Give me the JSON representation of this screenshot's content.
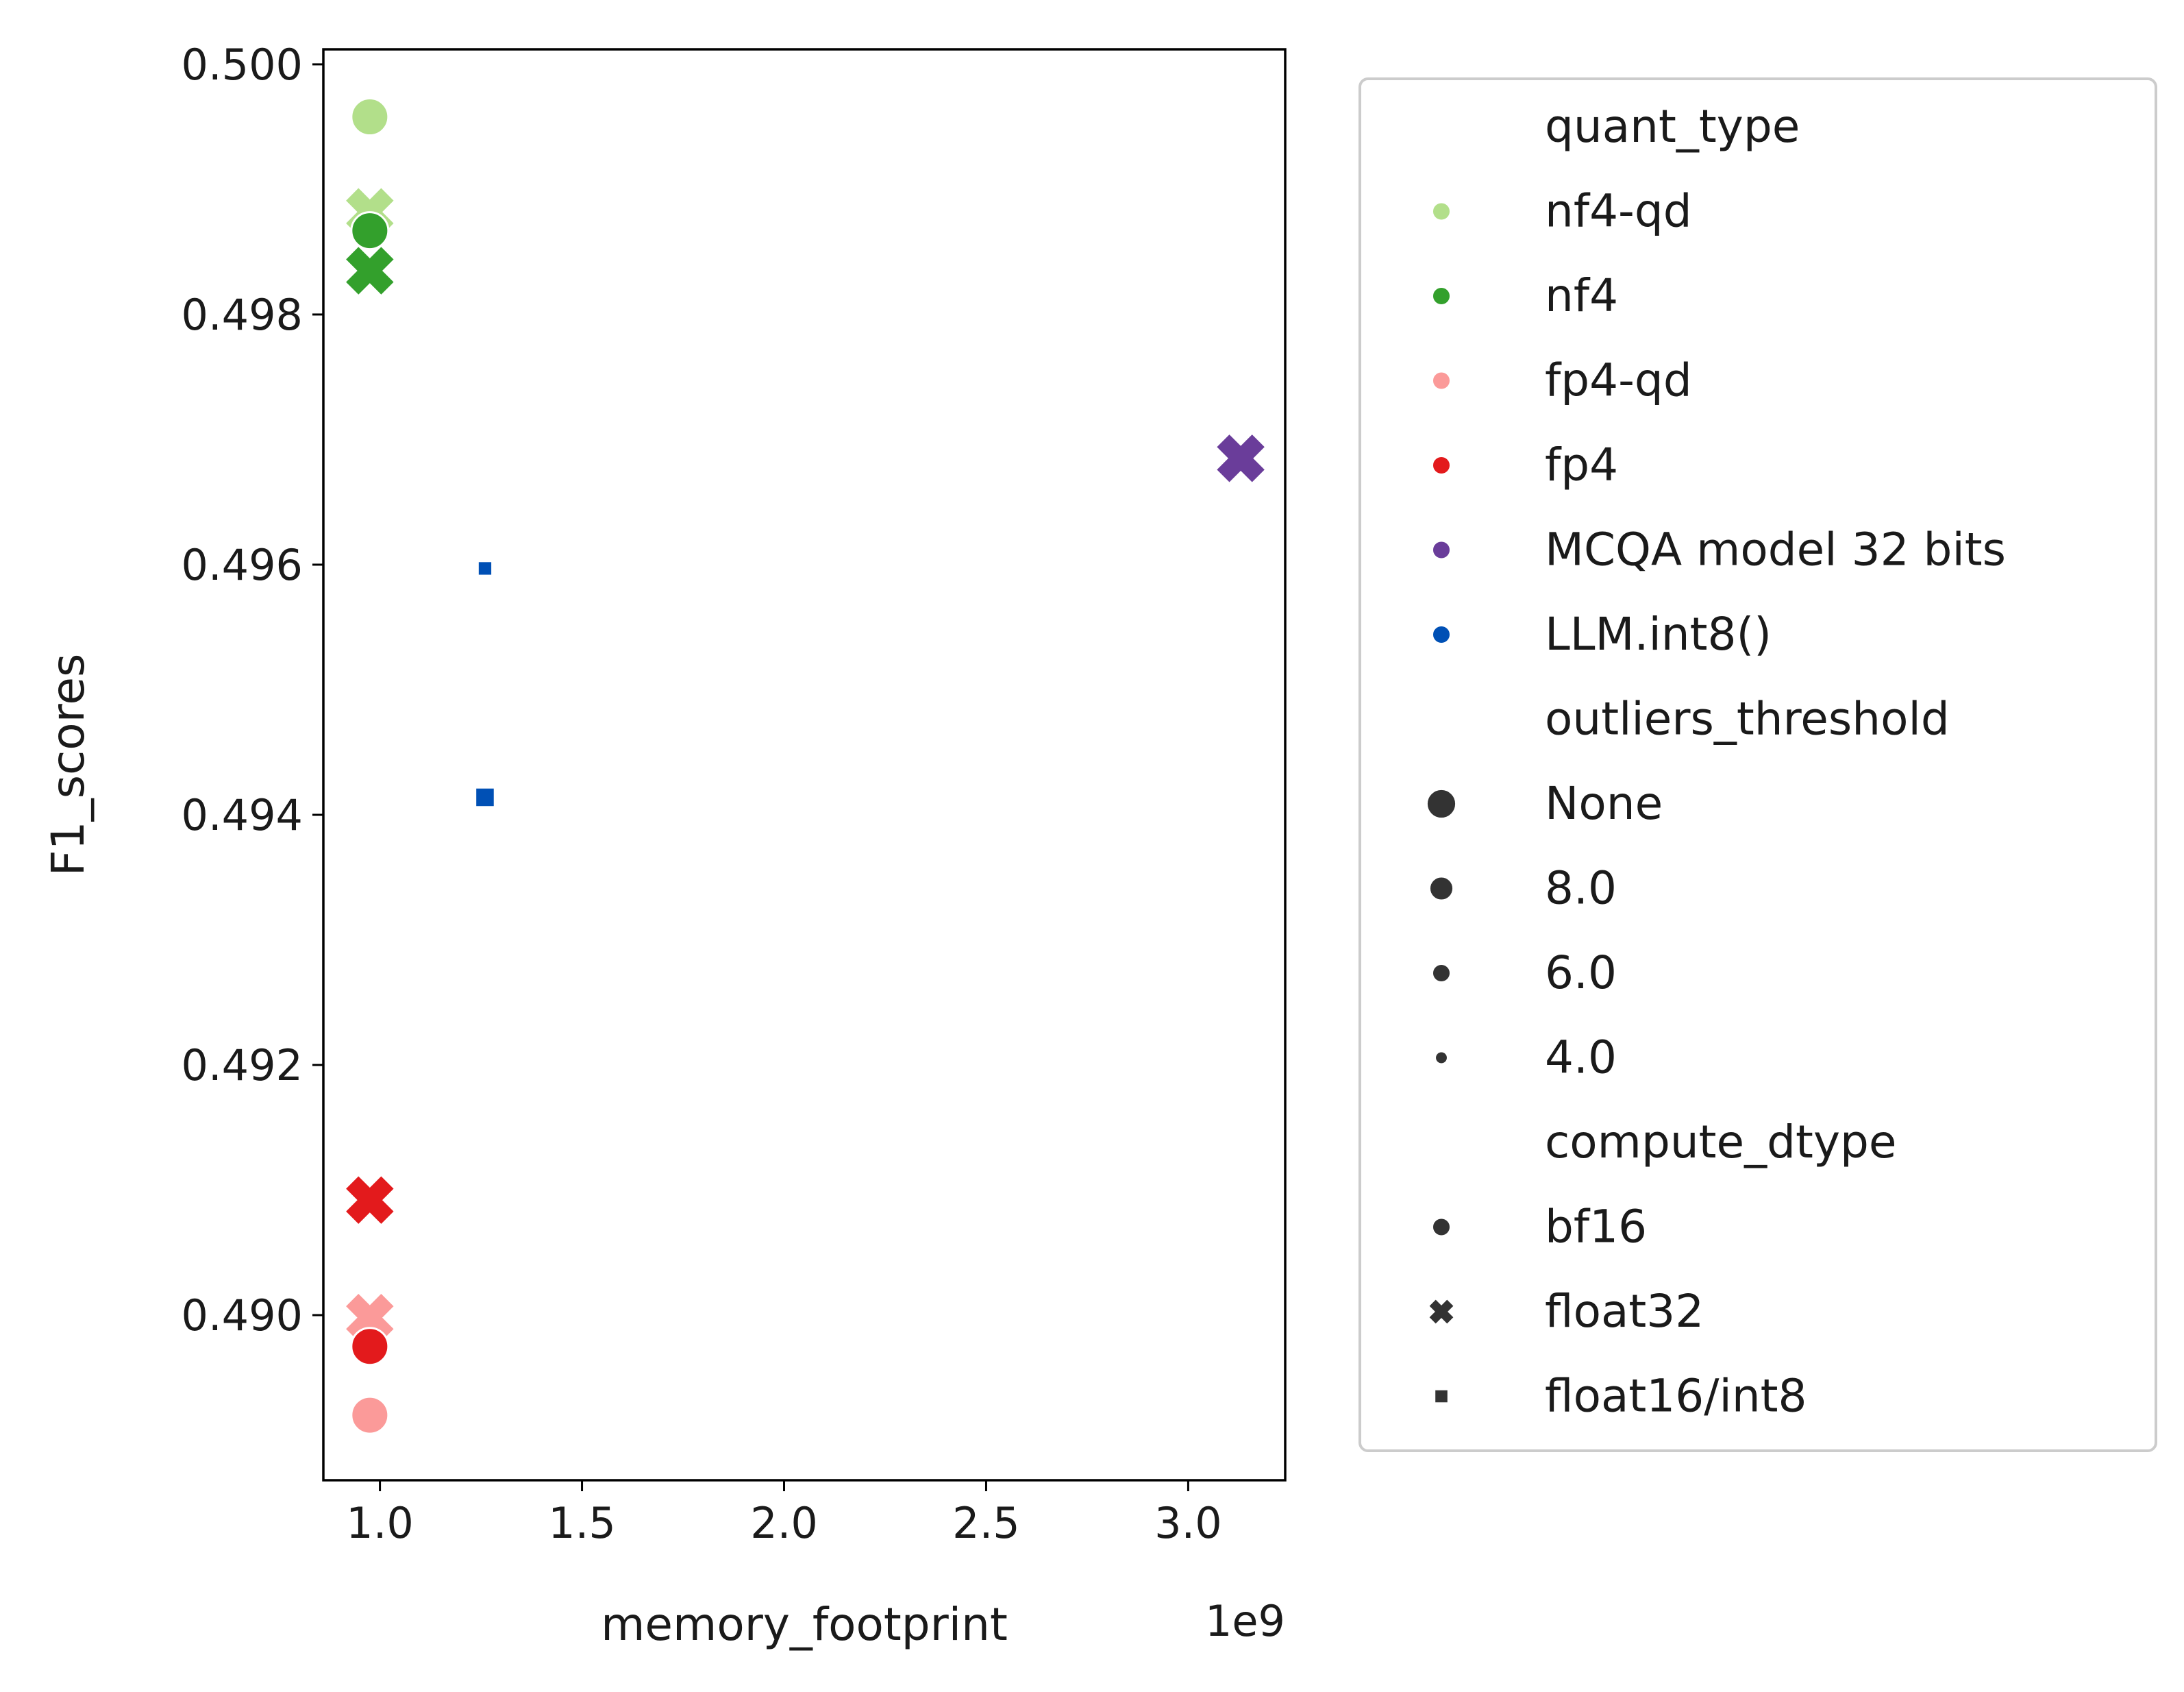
{
  "chart_data": {
    "type": "scatter",
    "title": "",
    "xlabel": "memory_footprint",
    "ylabel": "F1_scores",
    "x_offset_label": "1e9",
    "xlim": [
      0.86,
      3.24
    ],
    "ylim": [
      0.48868,
      0.50012
    ],
    "x_scale_factor": 1000000000,
    "xticks": [
      1.0,
      1.5,
      2.0,
      2.5,
      3.0
    ],
    "xtick_labels": [
      "1.0",
      "1.5",
      "2.0",
      "2.5",
      "3.0"
    ],
    "yticks": [
      0.49,
      0.492,
      0.494,
      0.496,
      0.498,
      0.5
    ],
    "ytick_labels": [
      "0.490",
      "0.492",
      "0.494",
      "0.496",
      "0.498",
      "0.500"
    ],
    "grid": false,
    "legend_position": "outside-right",
    "colors": {
      "nf4-qd": "#b2df8a",
      "nf4": "#33a02c",
      "fp4-qd": "#fb9a99",
      "fp4": "#e31a1c",
      "MCQA model 32 bits": "#6a3d9a",
      "LLM.int8()": "#0050b5",
      "neutral": "#333333"
    },
    "points": [
      {
        "quant_type": "nf4-qd",
        "outliers_threshold": "None",
        "compute_dtype": "float32",
        "x": 0.975,
        "y": 0.49882
      },
      {
        "quant_type": "nf4-qd",
        "outliers_threshold": "None",
        "compute_dtype": "bf16",
        "x": 0.975,
        "y": 0.49958
      },
      {
        "quant_type": "nf4",
        "outliers_threshold": "None",
        "compute_dtype": "float32",
        "x": 0.975,
        "y": 0.49835
      },
      {
        "quant_type": "nf4",
        "outliers_threshold": "None",
        "compute_dtype": "bf16",
        "x": 0.975,
        "y": 0.49867
      },
      {
        "quant_type": "fp4-qd",
        "outliers_threshold": "None",
        "compute_dtype": "float32",
        "x": 0.975,
        "y": 0.48998
      },
      {
        "quant_type": "fp4-qd",
        "outliers_threshold": "None",
        "compute_dtype": "bf16",
        "x": 0.975,
        "y": 0.4892
      },
      {
        "quant_type": "fp4",
        "outliers_threshold": "None",
        "compute_dtype": "float32",
        "x": 0.975,
        "y": 0.49092
      },
      {
        "quant_type": "fp4",
        "outliers_threshold": "None",
        "compute_dtype": "bf16",
        "x": 0.975,
        "y": 0.48975
      },
      {
        "quant_type": "MCQA model 32 bits",
        "outliers_threshold": "None",
        "compute_dtype": "float32",
        "x": 3.13,
        "y": 0.49685
      },
      {
        "quant_type": "LLM.int8()",
        "outliers_threshold": "4.0",
        "compute_dtype": "float16/int8",
        "x": 1.26,
        "y": 0.49597
      },
      {
        "quant_type": "LLM.int8()",
        "outliers_threshold": "6.0",
        "compute_dtype": "float16/int8",
        "x": 1.26,
        "y": 0.49414
      }
    ],
    "legend": {
      "groups": [
        {
          "title": "quant_type",
          "items": [
            {
              "label": "nf4-qd",
              "marker": "circle",
              "color": "#b2df8a",
              "size": 10
            },
            {
              "label": "nf4",
              "marker": "circle",
              "color": "#33a02c",
              "size": 10
            },
            {
              "label": "fp4-qd",
              "marker": "circle",
              "color": "#fb9a99",
              "size": 10
            },
            {
              "label": "fp4",
              "marker": "circle",
              "color": "#e31a1c",
              "size": 10
            },
            {
              "label": "MCQA model 32 bits",
              "marker": "circle",
              "color": "#6a3d9a",
              "size": 10
            },
            {
              "label": "LLM.int8()",
              "marker": "circle",
              "color": "#0050b5",
              "size": 10
            }
          ]
        },
        {
          "title": "outliers_threshold",
          "items": [
            {
              "label": "None",
              "marker": "circle",
              "color": "#333333",
              "size": 16
            },
            {
              "label": "8.0",
              "marker": "circle",
              "color": "#333333",
              "size": 13
            },
            {
              "label": "6.0",
              "marker": "circle",
              "color": "#333333",
              "size": 10
            },
            {
              "label": "4.0",
              "marker": "circle",
              "color": "#333333",
              "size": 7
            }
          ]
        },
        {
          "title": "compute_dtype",
          "items": [
            {
              "label": "bf16",
              "marker": "circle",
              "color": "#333333",
              "size": 10
            },
            {
              "label": "float32",
              "marker": "x",
              "color": "#333333",
              "size": 10
            },
            {
              "label": "float16/int8",
              "marker": "square",
              "color": "#333333",
              "size": 10
            }
          ]
        }
      ]
    }
  }
}
